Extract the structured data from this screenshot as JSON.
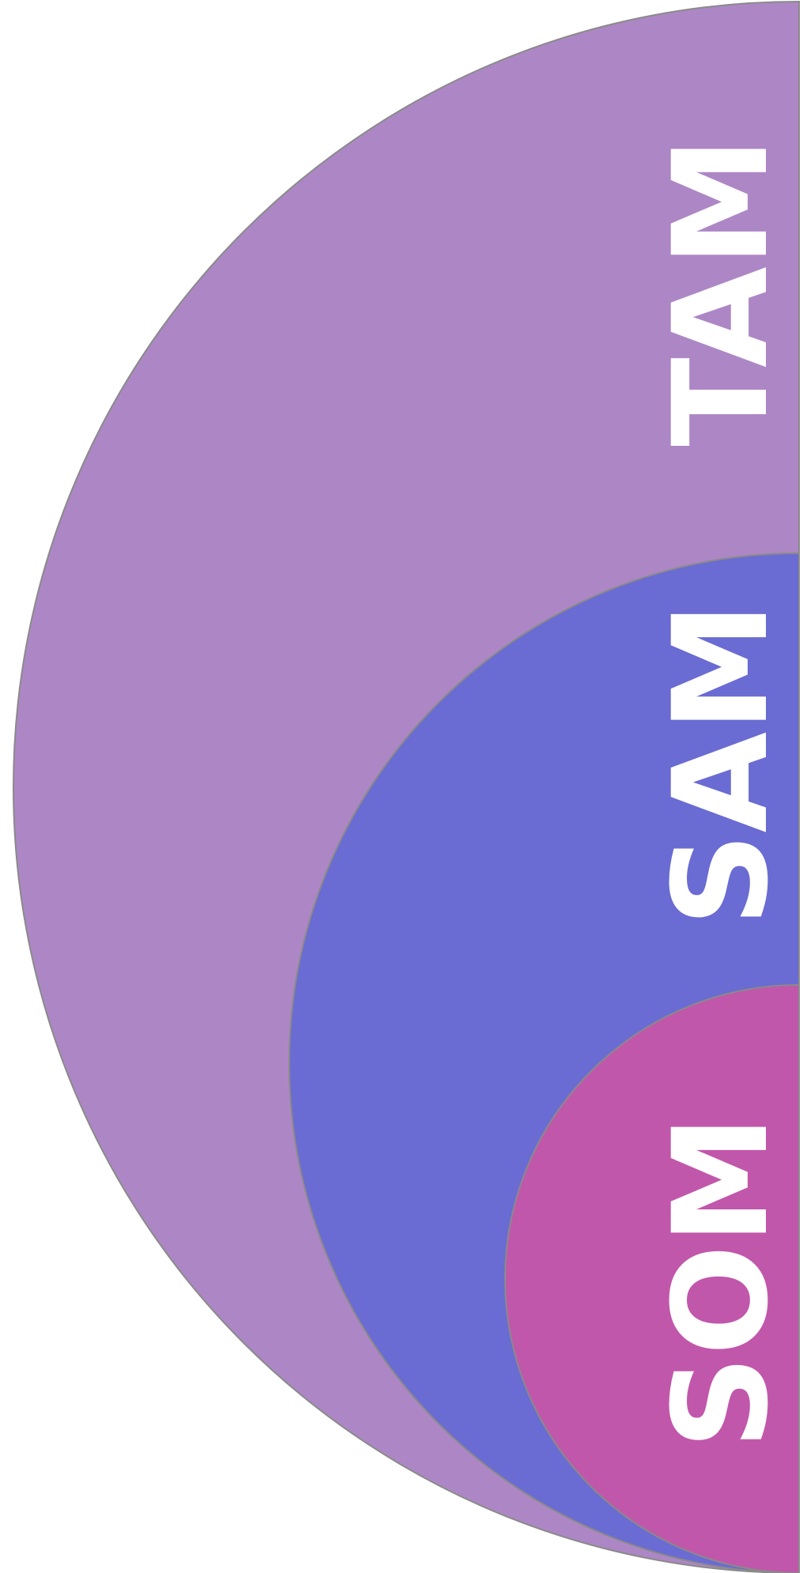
{
  "nodes": [
    {
      "label": "TAM"
    },
    {
      "label": "SAM"
    },
    {
      "label": "SOM"
    }
  ]
}
